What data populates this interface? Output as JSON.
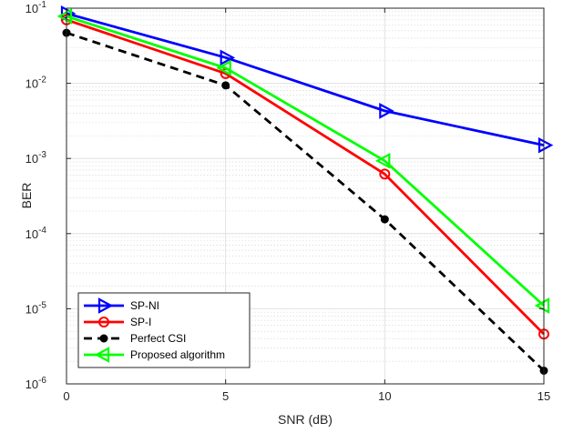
{
  "chart_data": {
    "type": "line",
    "xlabel": "SNR (dB)",
    "ylabel": "BER",
    "x": [
      0,
      5,
      10,
      15
    ],
    "xlim": [
      0,
      15
    ],
    "xticks": [
      0,
      5,
      10,
      15
    ],
    "ylim": [
      1e-06,
      0.1
    ],
    "yscale": "log",
    "yticks": [
      {
        "value": 1e-06,
        "base": "10",
        "exp": "-6"
      },
      {
        "value": 1e-05,
        "base": "10",
        "exp": "-5"
      },
      {
        "value": 0.0001,
        "base": "10",
        "exp": "-4"
      },
      {
        "value": 0.001,
        "base": "10",
        "exp": "-3"
      },
      {
        "value": 0.01,
        "base": "10",
        "exp": "-2"
      },
      {
        "value": 0.1,
        "base": "10",
        "exp": "-1"
      }
    ],
    "grid": true,
    "minor_grid": true,
    "legend_position": "bottom-left",
    "series": [
      {
        "name": "SP-NI",
        "values": [
          0.085,
          0.022,
          0.0043,
          0.0015
        ],
        "color": "#0000ff",
        "marker": "triangle-right",
        "linestyle": "solid"
      },
      {
        "name": "SP-I",
        "values": [
          0.07,
          0.0135,
          0.00062,
          4.6e-06
        ],
        "color": "#ff0000",
        "marker": "circle-open",
        "linestyle": "solid"
      },
      {
        "name": "Perfect CSI",
        "values": [
          0.047,
          0.0094,
          0.000155,
          1.5e-06
        ],
        "color": "#000000",
        "marker": "dot",
        "linestyle": "dashed"
      },
      {
        "name": "Proposed algorithm",
        "values": [
          0.078,
          0.016,
          0.00093,
          1.1e-05
        ],
        "color": "#00ff00",
        "marker": "triangle-left",
        "linestyle": "solid"
      }
    ]
  }
}
